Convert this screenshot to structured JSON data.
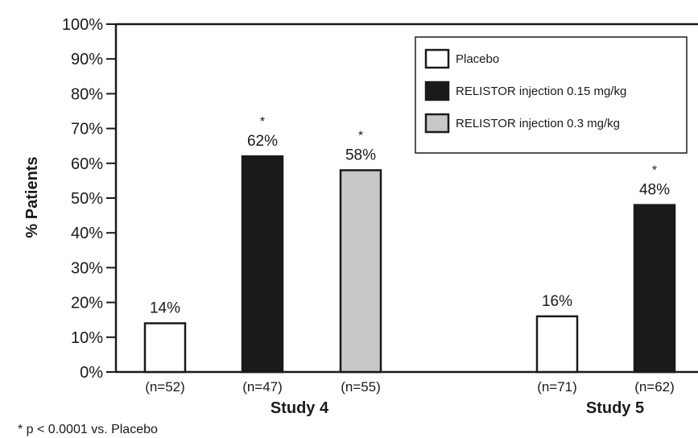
{
  "chart_data": {
    "type": "bar",
    "ylabel": "% Patients",
    "xlabel": "",
    "ylim": [
      0,
      100
    ],
    "yticks": [
      "0%",
      "10%",
      "20%",
      "30%",
      "40%",
      "50%",
      "60%",
      "70%",
      "80%",
      "90%",
      "100%"
    ],
    "legend": {
      "placement": "top-right",
      "entries": [
        {
          "label": "Placebo",
          "color": "#ffffff"
        },
        {
          "label": "RELISTOR injection 0.15 mg/kg",
          "color": "#1a1a1a"
        },
        {
          "label": "RELISTOR injection 0.3 mg/kg",
          "color": "#c8c8c8"
        }
      ]
    },
    "groups": [
      {
        "name": "Study 4",
        "bars": [
          {
            "series": "Placebo",
            "value": 14,
            "label": "14%",
            "n": "(n=52)",
            "star": false
          },
          {
            "series": "RELISTOR injection 0.15 mg/kg",
            "value": 62,
            "label": "62%",
            "n": "(n=47)",
            "star": true
          },
          {
            "series": "RELISTOR injection 0.3 mg/kg",
            "value": 58,
            "label": "58%",
            "n": "(n=55)",
            "star": true
          }
        ]
      },
      {
        "name": "Study 5",
        "bars": [
          {
            "series": "Placebo",
            "value": 16,
            "label": "16%",
            "n": "(n=71)",
            "star": false
          },
          {
            "series": "RELISTOR injection 0.15 mg/kg",
            "value": 48,
            "label": "48%",
            "n": "(n=62)",
            "star": true
          }
        ]
      }
    ],
    "star_symbol": "*",
    "footnote": "* p < 0.0001 vs. Placebo",
    "colors": {
      "placebo": "#ffffff",
      "dose_015": "#1a1a1a",
      "dose_03": "#c8c8c8",
      "stroke": "#1a1a1a"
    }
  }
}
